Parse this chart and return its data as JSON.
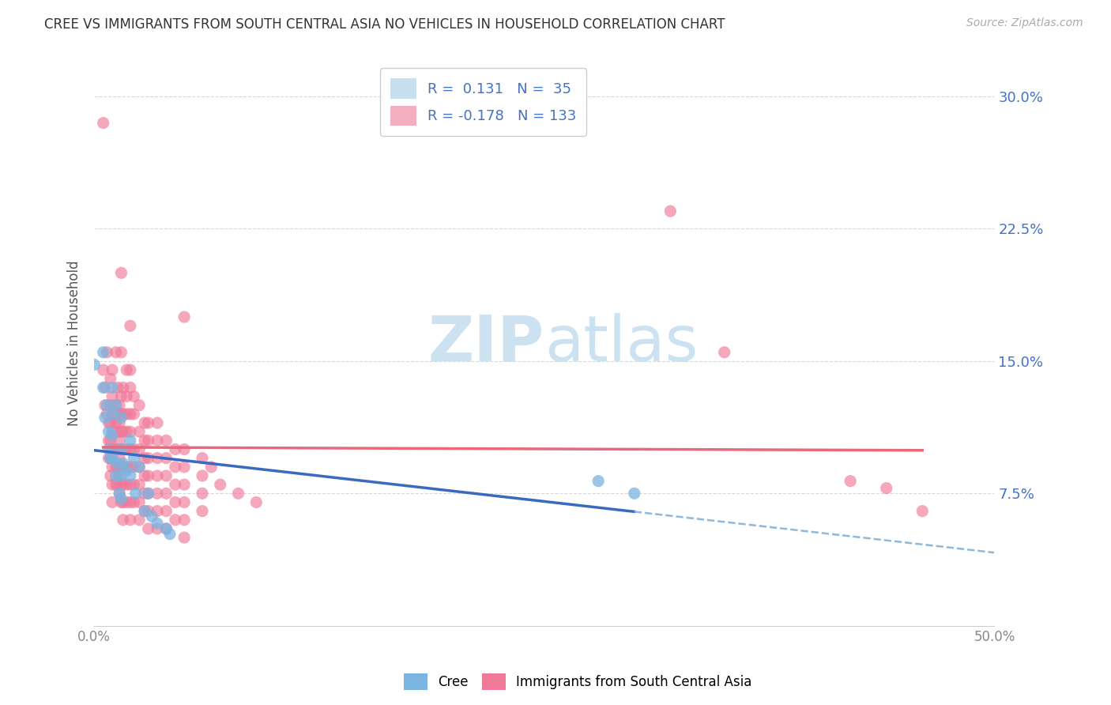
{
  "title": "CREE VS IMMIGRANTS FROM SOUTH CENTRAL ASIA NO VEHICLES IN HOUSEHOLD CORRELATION CHART",
  "source": "Source: ZipAtlas.com",
  "ylabel": "No Vehicles in Household",
  "yticks": [
    "7.5%",
    "15.0%",
    "22.5%",
    "30.0%"
  ],
  "ytick_vals": [
    0.075,
    0.15,
    0.225,
    0.3
  ],
  "xlim": [
    0.0,
    0.5
  ],
  "ylim": [
    0.0,
    0.32
  ],
  "cree_color": "#7ab4e0",
  "immigrant_color": "#f07898",
  "cree_line_color": "#3a6abf",
  "immigrant_line_color": "#e8687c",
  "dash_line_color": "#90b8d8",
  "background_color": "#ffffff",
  "grid_color": "#d8d8d8",
  "title_color": "#333333",
  "right_axis_color": "#4472c4",
  "watermark_color": "#c8dff0",
  "legend_box_color": "#c8dff0",
  "cree_scatter": [
    [
      0.0,
      0.148
    ],
    [
      0.005,
      0.155
    ],
    [
      0.005,
      0.135
    ],
    [
      0.006,
      0.118
    ],
    [
      0.007,
      0.125
    ],
    [
      0.008,
      0.11
    ],
    [
      0.008,
      0.1
    ],
    [
      0.009,
      0.095
    ],
    [
      0.01,
      0.135
    ],
    [
      0.01,
      0.12
    ],
    [
      0.01,
      0.108
    ],
    [
      0.01,
      0.095
    ],
    [
      0.012,
      0.125
    ],
    [
      0.012,
      0.085
    ],
    [
      0.013,
      0.092
    ],
    [
      0.014,
      0.075
    ],
    [
      0.015,
      0.118
    ],
    [
      0.015,
      0.1
    ],
    [
      0.015,
      0.085
    ],
    [
      0.015,
      0.072
    ],
    [
      0.016,
      0.092
    ],
    [
      0.018,
      0.088
    ],
    [
      0.02,
      0.105
    ],
    [
      0.02,
      0.085
    ],
    [
      0.022,
      0.095
    ],
    [
      0.023,
      0.075
    ],
    [
      0.025,
      0.09
    ],
    [
      0.028,
      0.065
    ],
    [
      0.03,
      0.075
    ],
    [
      0.032,
      0.062
    ],
    [
      0.035,
      0.058
    ],
    [
      0.04,
      0.055
    ],
    [
      0.042,
      0.052
    ],
    [
      0.28,
      0.082
    ],
    [
      0.3,
      0.075
    ]
  ],
  "immigrant_scatter": [
    [
      0.005,
      0.285
    ],
    [
      0.005,
      0.145
    ],
    [
      0.006,
      0.135
    ],
    [
      0.006,
      0.125
    ],
    [
      0.007,
      0.155
    ],
    [
      0.007,
      0.12
    ],
    [
      0.008,
      0.115
    ],
    [
      0.008,
      0.105
    ],
    [
      0.008,
      0.095
    ],
    [
      0.009,
      0.14
    ],
    [
      0.009,
      0.125
    ],
    [
      0.009,
      0.115
    ],
    [
      0.009,
      0.105
    ],
    [
      0.009,
      0.095
    ],
    [
      0.009,
      0.085
    ],
    [
      0.01,
      0.145
    ],
    [
      0.01,
      0.13
    ],
    [
      0.01,
      0.12
    ],
    [
      0.01,
      0.11
    ],
    [
      0.01,
      0.1
    ],
    [
      0.01,
      0.09
    ],
    [
      0.01,
      0.08
    ],
    [
      0.01,
      0.07
    ],
    [
      0.012,
      0.155
    ],
    [
      0.012,
      0.125
    ],
    [
      0.012,
      0.115
    ],
    [
      0.012,
      0.1
    ],
    [
      0.012,
      0.09
    ],
    [
      0.012,
      0.08
    ],
    [
      0.013,
      0.135
    ],
    [
      0.013,
      0.12
    ],
    [
      0.013,
      0.11
    ],
    [
      0.013,
      0.1
    ],
    [
      0.013,
      0.09
    ],
    [
      0.013,
      0.08
    ],
    [
      0.014,
      0.125
    ],
    [
      0.014,
      0.115
    ],
    [
      0.014,
      0.105
    ],
    [
      0.014,
      0.095
    ],
    [
      0.014,
      0.085
    ],
    [
      0.014,
      0.075
    ],
    [
      0.015,
      0.2
    ],
    [
      0.015,
      0.155
    ],
    [
      0.015,
      0.13
    ],
    [
      0.015,
      0.12
    ],
    [
      0.015,
      0.11
    ],
    [
      0.015,
      0.1
    ],
    [
      0.015,
      0.09
    ],
    [
      0.015,
      0.08
    ],
    [
      0.015,
      0.07
    ],
    [
      0.016,
      0.135
    ],
    [
      0.016,
      0.12
    ],
    [
      0.016,
      0.11
    ],
    [
      0.016,
      0.1
    ],
    [
      0.016,
      0.09
    ],
    [
      0.016,
      0.08
    ],
    [
      0.016,
      0.07
    ],
    [
      0.016,
      0.06
    ],
    [
      0.018,
      0.145
    ],
    [
      0.018,
      0.13
    ],
    [
      0.018,
      0.12
    ],
    [
      0.018,
      0.11
    ],
    [
      0.018,
      0.1
    ],
    [
      0.018,
      0.09
    ],
    [
      0.018,
      0.08
    ],
    [
      0.018,
      0.07
    ],
    [
      0.02,
      0.17
    ],
    [
      0.02,
      0.145
    ],
    [
      0.02,
      0.135
    ],
    [
      0.02,
      0.12
    ],
    [
      0.02,
      0.11
    ],
    [
      0.02,
      0.1
    ],
    [
      0.02,
      0.09
    ],
    [
      0.02,
      0.08
    ],
    [
      0.02,
      0.07
    ],
    [
      0.02,
      0.06
    ],
    [
      0.022,
      0.13
    ],
    [
      0.022,
      0.12
    ],
    [
      0.022,
      0.1
    ],
    [
      0.022,
      0.09
    ],
    [
      0.022,
      0.08
    ],
    [
      0.022,
      0.07
    ],
    [
      0.025,
      0.125
    ],
    [
      0.025,
      0.11
    ],
    [
      0.025,
      0.1
    ],
    [
      0.025,
      0.09
    ],
    [
      0.025,
      0.08
    ],
    [
      0.025,
      0.07
    ],
    [
      0.025,
      0.06
    ],
    [
      0.028,
      0.115
    ],
    [
      0.028,
      0.105
    ],
    [
      0.028,
      0.095
    ],
    [
      0.028,
      0.085
    ],
    [
      0.028,
      0.075
    ],
    [
      0.028,
      0.065
    ],
    [
      0.03,
      0.115
    ],
    [
      0.03,
      0.105
    ],
    [
      0.03,
      0.095
    ],
    [
      0.03,
      0.085
    ],
    [
      0.03,
      0.075
    ],
    [
      0.03,
      0.065
    ],
    [
      0.03,
      0.055
    ],
    [
      0.035,
      0.115
    ],
    [
      0.035,
      0.105
    ],
    [
      0.035,
      0.095
    ],
    [
      0.035,
      0.085
    ],
    [
      0.035,
      0.075
    ],
    [
      0.035,
      0.065
    ],
    [
      0.035,
      0.055
    ],
    [
      0.04,
      0.105
    ],
    [
      0.04,
      0.095
    ],
    [
      0.04,
      0.085
    ],
    [
      0.04,
      0.075
    ],
    [
      0.04,
      0.065
    ],
    [
      0.04,
      0.055
    ],
    [
      0.045,
      0.1
    ],
    [
      0.045,
      0.09
    ],
    [
      0.045,
      0.08
    ],
    [
      0.045,
      0.07
    ],
    [
      0.045,
      0.06
    ],
    [
      0.05,
      0.175
    ],
    [
      0.05,
      0.1
    ],
    [
      0.05,
      0.09
    ],
    [
      0.05,
      0.08
    ],
    [
      0.05,
      0.07
    ],
    [
      0.05,
      0.06
    ],
    [
      0.05,
      0.05
    ],
    [
      0.06,
      0.095
    ],
    [
      0.06,
      0.085
    ],
    [
      0.06,
      0.075
    ],
    [
      0.06,
      0.065
    ],
    [
      0.065,
      0.09
    ],
    [
      0.07,
      0.08
    ],
    [
      0.08,
      0.075
    ],
    [
      0.09,
      0.07
    ],
    [
      0.32,
      0.235
    ],
    [
      0.35,
      0.155
    ],
    [
      0.42,
      0.082
    ],
    [
      0.44,
      0.078
    ],
    [
      0.46,
      0.065
    ]
  ]
}
